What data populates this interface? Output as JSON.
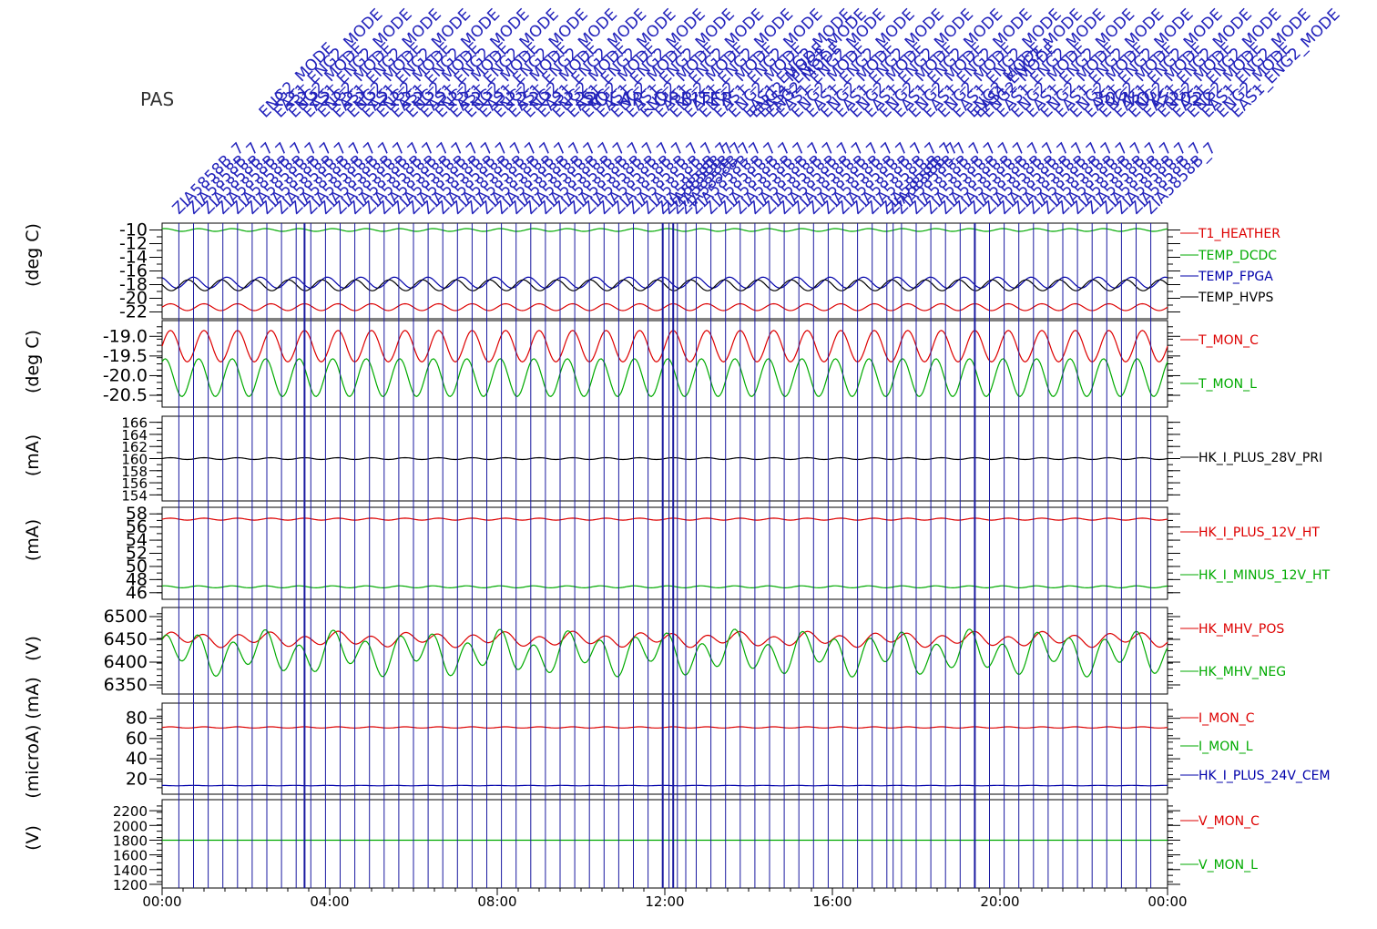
{
  "instrument_label": "PAS",
  "colors": {
    "red": "#dd0000",
    "green": "#00aa00",
    "blue": "#0000aa",
    "black": "#000000",
    "event": "#1a1aa0"
  },
  "annotations": {
    "repeated_labels": [
      "ENG2_MODE",
      "EAS1_ENG2_MODE",
      "ZIA5858B_7",
      "2222222222222222222222222222",
      "SOLAR_ORBITER",
      "30/NOV/2021"
    ]
  },
  "chart_data": [
    {
      "type": "line",
      "ylabel": "(deg C)",
      "ylim": [
        -23,
        -9
      ],
      "yticks": [
        "-10",
        "-12",
        "-14",
        "-16",
        "-18",
        "-20",
        "-22"
      ],
      "series": [
        {
          "name": "T1_HEATHER",
          "color": "#dd0000",
          "base": -21.3,
          "amp": 0.5
        },
        {
          "name": "TEMP_DCDC",
          "color": "#00aa00",
          "base": -10.0,
          "amp": 0.2
        },
        {
          "name": "TEMP_FPGA",
          "color": "#0000aa",
          "base": -17.7,
          "amp": 0.8
        },
        {
          "name": "TEMP_HVPS",
          "color": "#000000",
          "base": -18.1,
          "amp": 0.8
        }
      ]
    },
    {
      "type": "line",
      "ylabel": "(deg C)",
      "ylim": [
        -20.8,
        -18.6
      ],
      "yticks": [
        "-19.0",
        "-19.5",
        "-20.0",
        "-20.5"
      ],
      "series": [
        {
          "name": "T_MON_C",
          "color": "#dd0000",
          "base": -19.25,
          "amp": 0.4
        },
        {
          "name": "T_MON_L",
          "color": "#00aa00",
          "base": -20.05,
          "amp": 0.48
        }
      ]
    },
    {
      "type": "line",
      "ylabel": "(mA)",
      "ylim": [
        153,
        167
      ],
      "yticks": [
        "166",
        "164",
        "162",
        "160",
        "158",
        "156",
        "154"
      ],
      "series": [
        {
          "name": "HK_I_PLUS_28V_PRI",
          "color": "#000000",
          "base": 160,
          "amp": 0.15
        }
      ]
    },
    {
      "type": "line",
      "ylabel": "(mA)",
      "ylim": [
        45,
        59
      ],
      "yticks": [
        "58",
        "56",
        "54",
        "52",
        "50",
        "48",
        "46"
      ],
      "series": [
        {
          "name": "HK_I_PLUS_12V_HT",
          "color": "#dd0000",
          "base": 57.2,
          "amp": 0.15
        },
        {
          "name": "HK_I_MINUS_12V_HT",
          "color": "#00aa00",
          "base": 46.9,
          "amp": 0.15
        }
      ]
    },
    {
      "type": "line",
      "ylabel": "(V)",
      "ylim": [
        6330,
        6520
      ],
      "yticks": [
        "6500",
        "6450",
        "6400",
        "6350"
      ],
      "series": [
        {
          "name": "HK_MHV_POS",
          "color": "#dd0000",
          "base": 6450,
          "amp": 12
        },
        {
          "name": "HK_MHV_NEG",
          "color": "#00aa00",
          "base": 6420,
          "amp": 35
        }
      ]
    },
    {
      "type": "line",
      "ylabel": "(microA) (mA)",
      "ylim": [
        5,
        95
      ],
      "yticks": [
        "80",
        "60",
        "40",
        "20"
      ],
      "series": [
        {
          "name": "I_MON_C",
          "color": "#dd0000",
          "base": 71,
          "amp": 0.6
        },
        {
          "name": "I_MON_L",
          "color": "#00aa00",
          "base": null,
          "amp": 0
        },
        {
          "name": "HK_I_PLUS_24V_CEM",
          "color": "#0000aa",
          "base": 13.5,
          "amp": 0.2
        }
      ]
    },
    {
      "type": "line",
      "ylabel": "(V)",
      "ylim": [
        1150,
        2350
      ],
      "yticks": [
        "2200",
        "2000",
        "1800",
        "1600",
        "1400",
        "1200"
      ],
      "series": [
        {
          "name": "V_MON_C",
          "color": "#dd0000",
          "base": null,
          "amp": 0
        },
        {
          "name": "V_MON_L",
          "color": "#00aa00",
          "base": 1800,
          "amp": 0
        }
      ]
    }
  ],
  "x_axis": {
    "range_hours": [
      0,
      24
    ],
    "tick_labels": [
      "00:00",
      "04:00",
      "08:00",
      "12:00",
      "16:00",
      "20:00",
      "00:00"
    ],
    "tick_hours": [
      0,
      4,
      8,
      12,
      16,
      20,
      24
    ]
  },
  "event_hours": [
    0.4,
    0.75,
    1.1,
    1.45,
    1.8,
    2.15,
    2.5,
    2.85,
    3.2,
    3.55,
    3.9,
    4.25,
    4.6,
    4.95,
    5.3,
    5.65,
    6.0,
    6.35,
    6.7,
    7.05,
    7.4,
    7.75,
    8.1,
    8.45,
    8.8,
    9.15,
    9.5,
    9.85,
    10.2,
    10.55,
    10.9,
    11.25,
    11.6,
    11.95,
    12.1,
    12.3,
    12.5,
    12.75,
    13.1,
    13.45,
    13.8,
    14.15,
    14.5,
    14.85,
    15.2,
    15.55,
    15.9,
    16.25,
    16.6,
    16.95,
    17.3,
    17.45,
    17.65,
    18.0,
    18.35,
    18.7,
    19.05,
    19.4,
    19.75,
    20.1,
    20.45,
    20.8,
    21.15,
    21.5,
    21.85,
    22.2,
    22.55,
    22.9,
    23.25,
    23.6
  ],
  "bold_event_hours": [
    3.4,
    11.95,
    12.2,
    19.4
  ]
}
